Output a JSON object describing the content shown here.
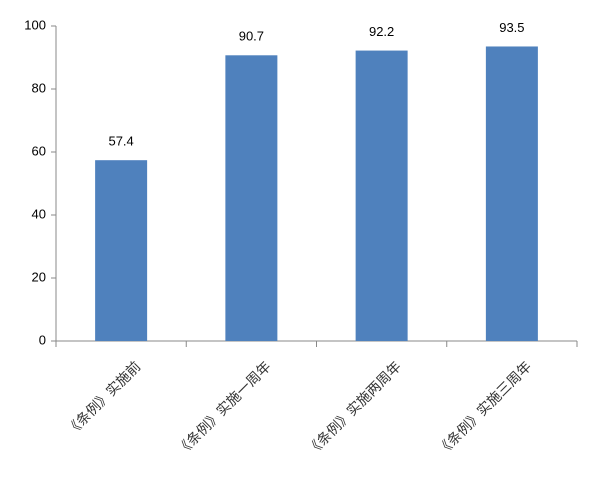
{
  "chart_data": {
    "type": "bar",
    "categories": [
      "《条例》实施前",
      "《条例》实施一周年",
      "《条例》实施两周年",
      "《条例》实施三周年"
    ],
    "values": [
      57.4,
      90.7,
      92.2,
      93.5
    ],
    "color": "#4f81bd",
    "ylim": [
      0,
      100
    ],
    "yticks": [
      0,
      20,
      40,
      60,
      80,
      100
    ],
    "grid": false
  }
}
